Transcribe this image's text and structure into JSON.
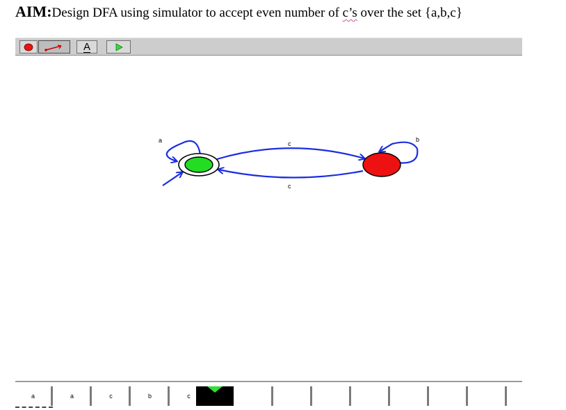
{
  "aim": {
    "label": "AIM:",
    "text_before": "Design DFA  using simulator to  accept even number of ",
    "highlight": "c’s",
    "text_after": " over the set  {a,b,c}",
    "squiggle_color": "#d0509a"
  },
  "toolbar": {
    "buttons": [
      {
        "name": "state-tool",
        "icon": "red-circle-icon"
      },
      {
        "name": "transition-tool",
        "icon": "red-arrow-icon",
        "pressed": true
      },
      {
        "name": "text-tool",
        "icon": "letter-a-icon",
        "glyph": "A"
      },
      {
        "name": "run-tool",
        "icon": "green-play-icon"
      }
    ]
  },
  "dfa": {
    "states": [
      {
        "id": "q0",
        "color": "#22dd22",
        "accepting": true,
        "initial": true
      },
      {
        "id": "q1",
        "color": "#ee1111",
        "accepting": false,
        "initial": false
      }
    ],
    "transitions": [
      {
        "from": "q0",
        "to": "q0",
        "label": "a"
      },
      {
        "from": "q0",
        "to": "q1",
        "label": "c"
      },
      {
        "from": "q1",
        "to": "q0",
        "label": "c"
      },
      {
        "from": "q1",
        "to": "q1",
        "label": "b"
      }
    ],
    "edge_color": "#1a2ee0"
  },
  "tape": {
    "cells": [
      "a",
      "a",
      "c",
      "b",
      "c",
      "",
      "",
      "",
      "",
      "",
      "",
      "",
      ""
    ],
    "head_index": 5
  }
}
